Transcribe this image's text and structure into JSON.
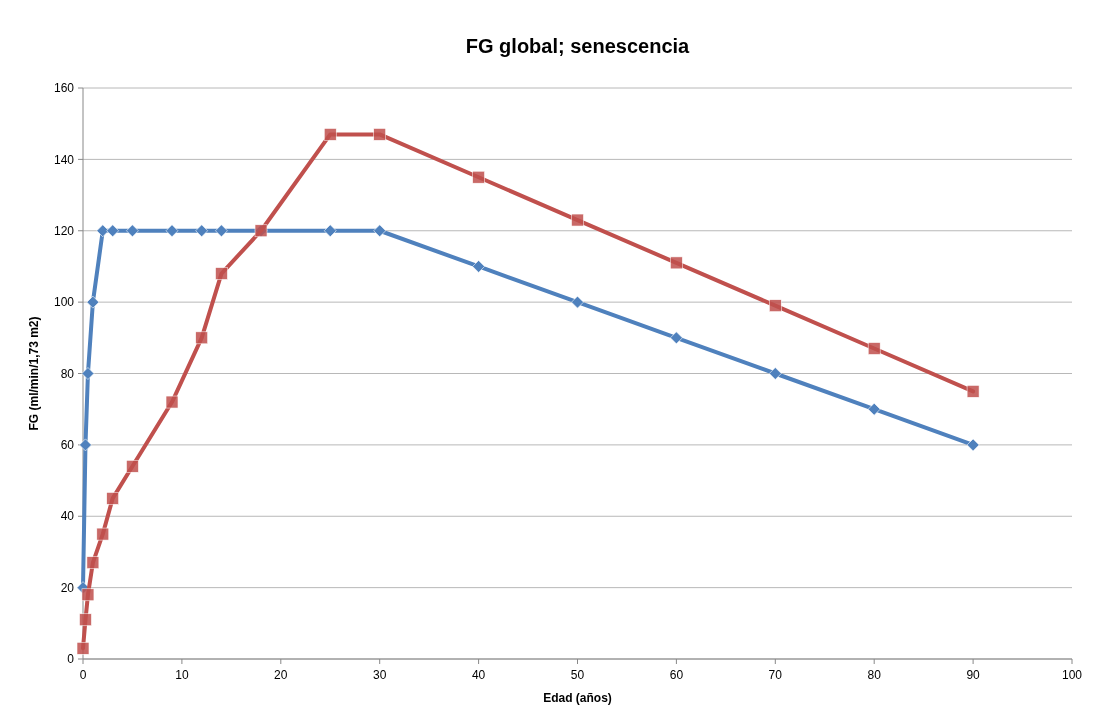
{
  "chart_data": {
    "type": "line",
    "title": "FG global; senescencia",
    "xlabel": "Edad (años)",
    "ylabel": "FG (ml/min/1,73 m2)",
    "x": [
      0,
      0.25,
      0.5,
      1,
      2,
      3,
      5,
      9,
      12,
      14,
      18,
      25,
      30,
      40,
      50,
      60,
      70,
      80,
      90
    ],
    "series": [
      {
        "color": "#4f81bd",
        "marker": "diamond",
        "values": [
          20,
          60,
          80,
          100,
          120,
          120,
          120,
          120,
          120,
          120,
          120,
          120,
          120,
          110,
          100,
          90,
          80,
          70,
          60
        ]
      },
      {
        "color": "#c0504d",
        "marker": "square",
        "values": [
          3,
          11,
          18,
          27,
          35,
          45,
          54,
          72,
          90,
          108,
          120,
          147,
          147,
          135,
          123,
          111,
          99,
          87,
          75
        ]
      }
    ],
    "xlim": [
      0,
      100
    ],
    "xticks": [
      0,
      10,
      20,
      30,
      40,
      50,
      60,
      70,
      80,
      90,
      100
    ],
    "ylim": [
      0,
      160
    ],
    "yticks": [
      0,
      20,
      40,
      60,
      80,
      100,
      120,
      140,
      160
    ],
    "grid": "y"
  }
}
